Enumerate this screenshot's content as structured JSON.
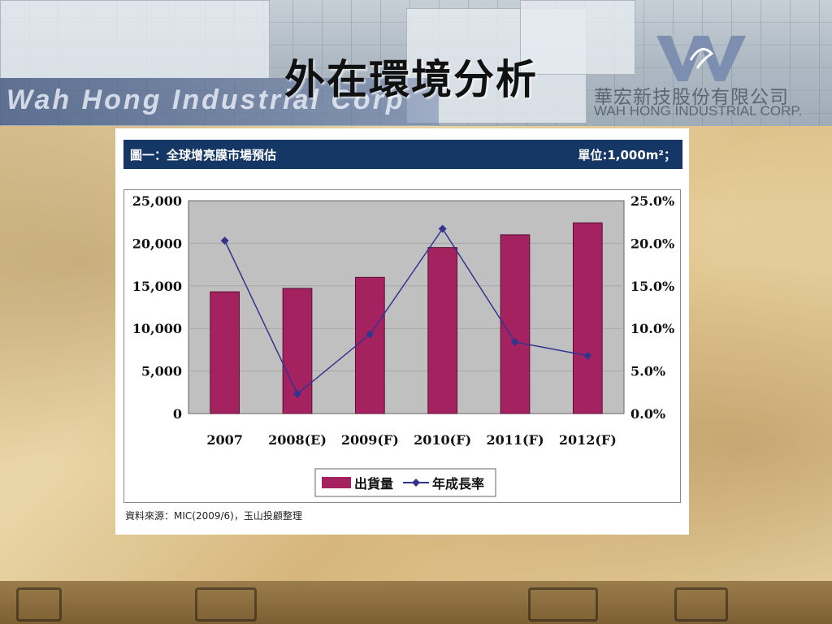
{
  "header": {
    "title": "外在環境分析",
    "brand_text": "Wah Hong Industrial Corp",
    "company_cn": "華宏新技股份有限公司",
    "company_en": "WAH HONG INDUSTRIAL CORP."
  },
  "chart_header": {
    "title": "圖一：全球增亮膜市場預估",
    "unit": "單位:1,000m²；"
  },
  "source_note": "資料來源：MIC(2009/6)，玉山投顧整理",
  "chart_data": {
    "type": "bar",
    "categories": [
      "2007",
      "2008(E)",
      "2009(F)",
      "2010(F)",
      "2011(F)",
      "2012(F)"
    ],
    "series": [
      {
        "name": "出貨量",
        "type": "bar",
        "axis": "left",
        "color": "#a3225f",
        "values": [
          14300,
          14700,
          16000,
          19500,
          21000,
          22400
        ]
      },
      {
        "name": "年成長率",
        "type": "line",
        "axis": "right",
        "color": "#34348f",
        "values": [
          20.3,
          2.3,
          9.3,
          21.7,
          8.4,
          6.8
        ]
      }
    ],
    "y_left": {
      "min": 0,
      "max": 25000,
      "ticks": [
        "0",
        "5,000",
        "10,000",
        "15,000",
        "20,000",
        "25,000"
      ]
    },
    "y_right": {
      "min": 0,
      "max": 25,
      "ticks": [
        "0.0%",
        "5.0%",
        "10.0%",
        "15.0%",
        "20.0%",
        "25.0%"
      ]
    },
    "grid": true,
    "legend": "bottom",
    "plot_background": "#c0c0c0"
  }
}
